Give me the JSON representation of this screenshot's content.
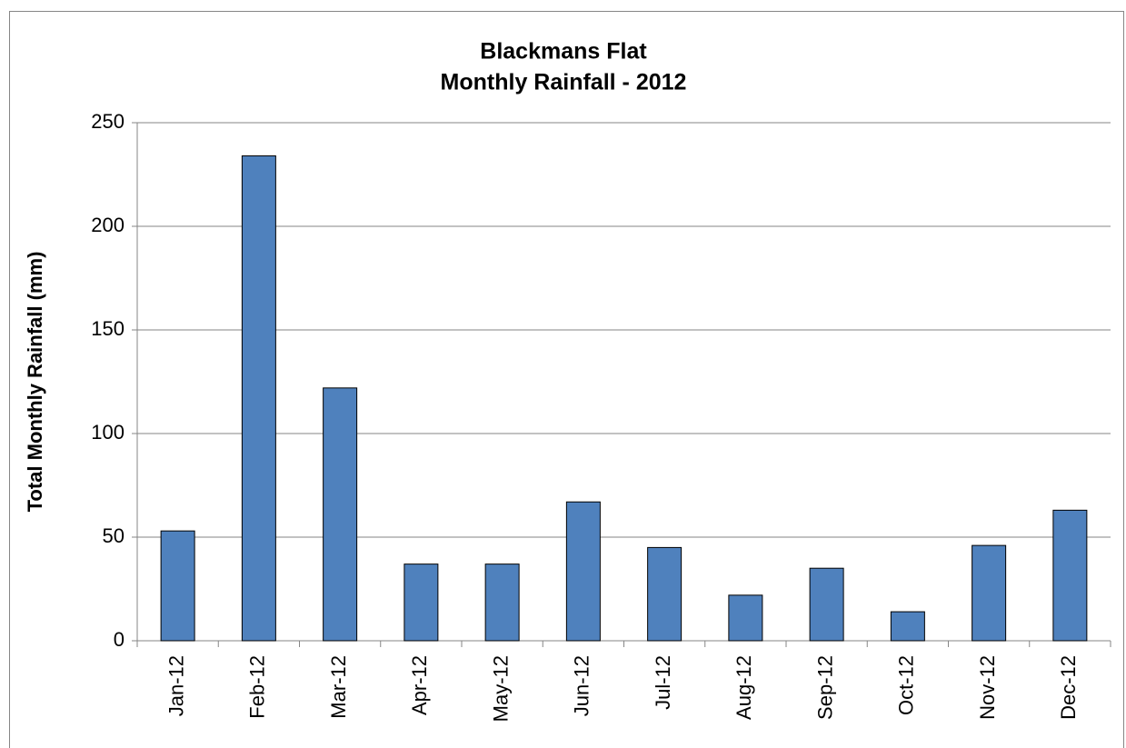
{
  "chart_data": {
    "type": "bar",
    "title": [
      "Blackmans Flat",
      "Monthly Rainfall - 2012"
    ],
    "y_label": "Total Monthly Rainfall (mm)",
    "categories": [
      "Jan-12",
      "Feb-12",
      "Mar-12",
      "Apr-12",
      "May-12",
      "Jun-12",
      "Jul-12",
      "Aug-12",
      "Sep-12",
      "Oct-12",
      "Nov-12",
      "Dec-12"
    ],
    "values": [
      53,
      234,
      122,
      37,
      37,
      67,
      45,
      22,
      35,
      14,
      46,
      63
    ],
    "color": "#4f81bd",
    "ylim": [
      0,
      250
    ],
    "yticks": [
      0,
      50,
      100,
      150,
      200,
      250
    ],
    "grid": true
  }
}
